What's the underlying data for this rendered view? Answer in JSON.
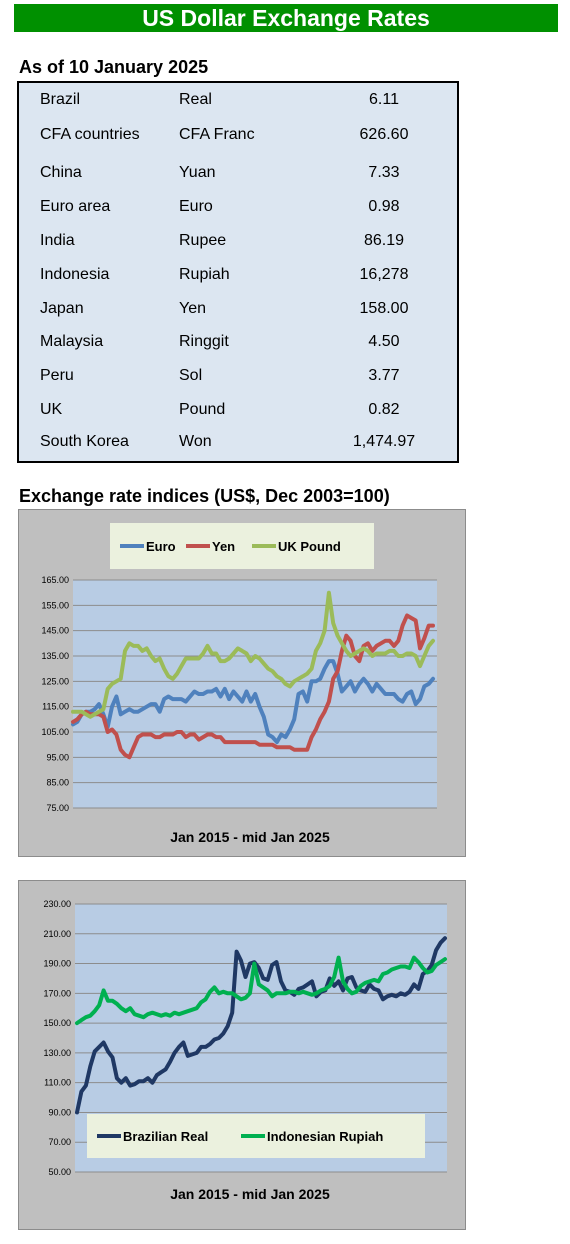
{
  "header": {
    "title": "US Dollar Exchange Rates"
  },
  "rates_section": {
    "title": "As of 10 January 2025",
    "rows": [
      {
        "country": "Brazil",
        "currency": "Real",
        "value": "6.11"
      },
      {
        "country": "CFA countries",
        "currency": "CFA Franc",
        "value": "626.60"
      },
      {
        "country": "China",
        "currency": "Yuan",
        "value": "7.33"
      },
      {
        "country": "Euro area",
        "currency": "Euro",
        "value": "0.98"
      },
      {
        "country": "India",
        "currency": "Rupee",
        "value": "86.19"
      },
      {
        "country": "Indonesia",
        "currency": "Rupiah",
        "value": "16,278"
      },
      {
        "country": "Japan",
        "currency": "Yen",
        "value": "158.00"
      },
      {
        "country": "Malaysia",
        "currency": "Ringgit",
        "value": "4.50"
      },
      {
        "country": "Peru",
        "currency": "Sol",
        "value": "3.77"
      },
      {
        "country": "UK",
        "currency": "Pound",
        "value": "0.82"
      },
      {
        "country": "South Korea",
        "currency": "Won",
        "value": "1,474.97"
      }
    ]
  },
  "indices_section": {
    "title": "Exchange rate indices (US$, Dec 2003=100)"
  },
  "chart_data": [
    {
      "type": "line",
      "xlabel": "Jan 2015 - mid Jan 2025",
      "ylim": [
        75,
        165
      ],
      "yticks": [
        "165.00",
        "155.00",
        "145.00",
        "135.00",
        "125.00",
        "115.00",
        "105.00",
        "95.00",
        "85.00",
        "75.00"
      ],
      "grid": true,
      "legend": "top",
      "series": [
        {
          "name": "Euro",
          "color": "#4f81bd",
          "values": [
            108,
            109,
            112,
            113,
            113,
            114,
            116,
            112,
            107,
            115,
            119,
            112,
            113,
            114,
            113,
            113,
            114,
            115,
            116,
            116,
            113,
            118,
            119,
            118,
            118,
            118,
            117,
            119,
            121,
            120,
            120,
            121,
            121,
            122,
            119,
            122,
            118,
            121,
            119,
            117,
            121,
            117,
            120,
            115,
            111,
            104,
            103,
            101,
            104,
            103,
            106,
            110,
            120,
            121,
            117,
            125,
            125,
            126,
            130,
            133,
            133,
            128,
            121,
            123,
            125,
            121,
            124,
            126,
            124,
            121,
            124,
            122,
            120,
            120,
            120,
            118,
            117,
            120,
            121,
            116,
            118,
            123,
            124,
            126
          ]
        },
        {
          "name": "Yen",
          "color": "#c0504d",
          "values": [
            109,
            110,
            112,
            113,
            112,
            112,
            112,
            111,
            105,
            106,
            104,
            98,
            96,
            95,
            99,
            103,
            104,
            104,
            104,
            103,
            103,
            104,
            104,
            104,
            105,
            105,
            103,
            104,
            104,
            102,
            103,
            104,
            104,
            103,
            103,
            101,
            101,
            101,
            101,
            101,
            101,
            101,
            101,
            100,
            100,
            100,
            100,
            99,
            99,
            99,
            99,
            98,
            98,
            98,
            98,
            103,
            106,
            110,
            113,
            117,
            126,
            129,
            137,
            143,
            141,
            135,
            133,
            139,
            140,
            137,
            139,
            140,
            141,
            141,
            139,
            141,
            147,
            151,
            150,
            149,
            138,
            142,
            147,
            147
          ]
        },
        {
          "name": "UK Pound",
          "color": "#9bbb59",
          "values": [
            113,
            113,
            113,
            112,
            111,
            112,
            113,
            114,
            122,
            124,
            125,
            126,
            137,
            140,
            139,
            139,
            137,
            138,
            135,
            133,
            134,
            130,
            127,
            126,
            128,
            131,
            134,
            134,
            134,
            134,
            136,
            139,
            136,
            136,
            133,
            133,
            134,
            136,
            138,
            137,
            136,
            133,
            135,
            134,
            132,
            130,
            129,
            127,
            126,
            124,
            123,
            125,
            126,
            127,
            128,
            130,
            137,
            140,
            145,
            160,
            148,
            143,
            140,
            137,
            135,
            136,
            137,
            138,
            137,
            135,
            136,
            136,
            136,
            137,
            137,
            135,
            135,
            136,
            136,
            135,
            131,
            135,
            139,
            141
          ]
        }
      ]
    },
    {
      "type": "line",
      "xlabel": "Jan 2015 - mid Jan 2025",
      "ylim": [
        50,
        230
      ],
      "yticks": [
        "230.00",
        "210.00",
        "190.00",
        "170.00",
        "150.00",
        "130.00",
        "110.00",
        "90.00",
        "70.00",
        "50.00"
      ],
      "grid": true,
      "legend": "bottom",
      "series": [
        {
          "name": "Brazilian Real",
          "color": "#1f3864",
          "values": [
            90,
            104,
            108,
            121,
            131,
            134,
            137,
            131,
            127,
            113,
            110,
            113,
            108,
            109,
            111,
            111,
            113,
            110,
            115,
            117,
            119,
            124,
            130,
            134,
            137,
            128,
            129,
            130,
            134,
            134,
            136,
            139,
            140,
            143,
            148,
            157,
            198,
            192,
            181,
            190,
            191,
            187,
            180,
            179,
            189,
            191,
            178,
            172,
            171,
            169,
            173,
            174,
            176,
            178,
            168,
            171,
            172,
            180,
            175,
            178,
            172,
            180,
            181,
            174,
            172,
            171,
            176,
            173,
            172,
            166,
            168,
            169,
            168,
            170,
            169,
            171,
            176,
            173,
            183,
            185,
            189,
            199,
            204,
            207
          ]
        },
        {
          "name": "Indonesian Rupiah",
          "color": "#00b050",
          "values": [
            150,
            152,
            154,
            155,
            158,
            162,
            172,
            165,
            165,
            163,
            160,
            158,
            160,
            156,
            155,
            154,
            156,
            157,
            156,
            155,
            156,
            155,
            157,
            156,
            157,
            158,
            159,
            160,
            164,
            166,
            171,
            174,
            170,
            171,
            170,
            170,
            168,
            166,
            167,
            170,
            190,
            176,
            174,
            172,
            168,
            170,
            170,
            170,
            171,
            171,
            170,
            171,
            170,
            169,
            170,
            172,
            173,
            175,
            181,
            194,
            178,
            173,
            170,
            171,
            175,
            177,
            178,
            179,
            178,
            183,
            184,
            186,
            187,
            188,
            188,
            187,
            194,
            191,
            187,
            184,
            185,
            189,
            191,
            193
          ]
        }
      ]
    }
  ]
}
